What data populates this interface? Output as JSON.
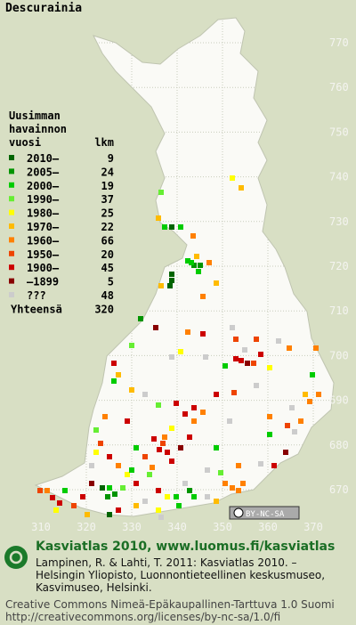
{
  "title": "Descurainia",
  "legend": {
    "heading": [
      "Uusimman",
      "havainnon"
    ],
    "col_heads": [
      "vuosi",
      "lkm"
    ],
    "rows": [
      {
        "label": "2010–",
        "count": 9,
        "color": "#006400"
      },
      {
        "label": "2005–",
        "count": 24,
        "color": "#009400"
      },
      {
        "label": "2000–",
        "count": 19,
        "color": "#00cc00"
      },
      {
        "label": "1990–",
        "count": 37,
        "color": "#66ee33"
      },
      {
        "label": "1980–",
        "count": 25,
        "color": "#ffff00"
      },
      {
        "label": "1970–",
        "count": 22,
        "color": "#ffbb00"
      },
      {
        "label": "1960–",
        "count": 66,
        "color": "#ff8000"
      },
      {
        "label": "1950–",
        "count": 20,
        "color": "#ee4400"
      },
      {
        "label": "1900–",
        "count": 45,
        "color": "#cc0000"
      },
      {
        "label": "–1899",
        "count": 5,
        "color": "#880000"
      },
      {
        "label": "???",
        "count": 48,
        "color": "#cccccc"
      }
    ],
    "total": {
      "label": "Yhteensä",
      "count": 320
    }
  },
  "grid": {
    "y_labels": [
      770,
      760,
      750,
      740,
      730,
      720,
      710,
      700,
      690,
      680,
      670
    ],
    "x_labels": [
      310,
      320,
      330,
      340,
      350,
      360,
      370
    ]
  },
  "license_badge": "BY-NC-SA",
  "footer": {
    "title": "Kasviatlas 2010, www.luomus.fi/kasviatlas",
    "citation": [
      "Lampinen, R. & Lahti, T. 2011: Kasviatlas 2010. –",
      "Helsingin Yliopisto, Luonnontieteellinen keskusmuseo,",
      "Kasvimuseo, Helsinki."
    ],
    "license": [
      "Creative Commons Nimeä-Epäkaupallinen-Tarttuva 1.0 Suomi",
      "http://creativecommons.org/licenses/by-nc-sa/1.0/fi"
    ]
  }
}
